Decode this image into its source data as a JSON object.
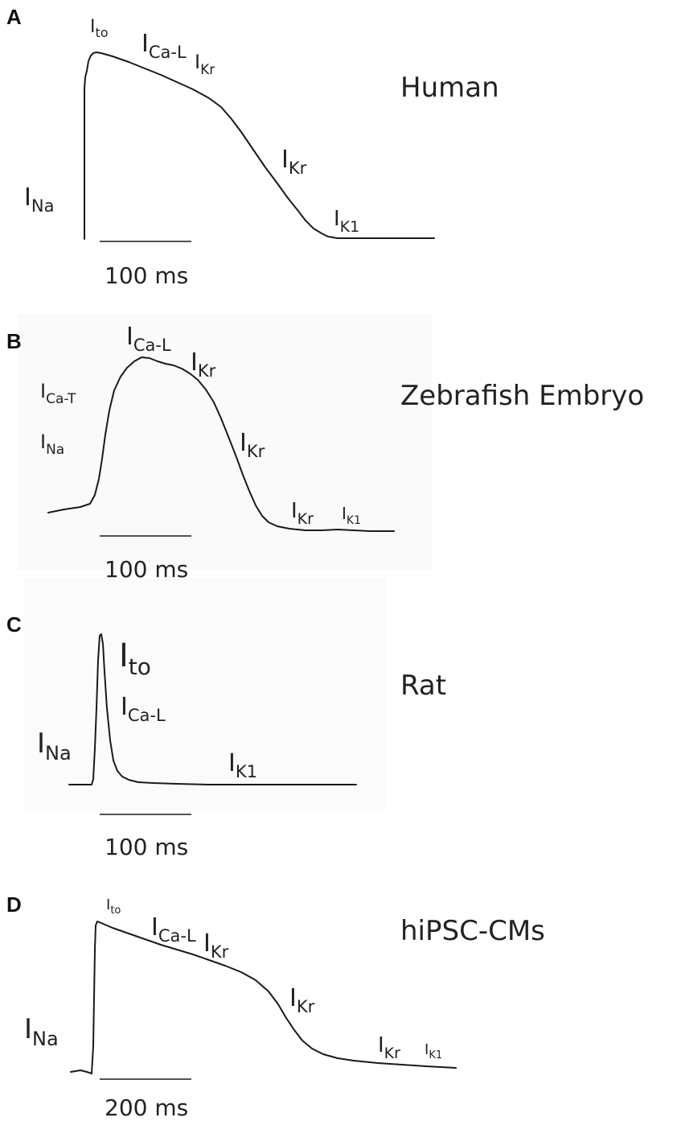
{
  "panels": [
    {
      "id": "A",
      "species": "Human",
      "scale_bar": "100 ms",
      "currents": [
        {
          "main": "I",
          "sub": "to"
        },
        {
          "main": "I",
          "sub": "Ca-L"
        },
        {
          "main": "I",
          "sub": "Kr"
        },
        {
          "main": "I",
          "sub": "Kr"
        },
        {
          "main": "I",
          "sub": "Na"
        },
        {
          "main": "I",
          "sub": "K1"
        }
      ]
    },
    {
      "id": "B",
      "species": "Zebrafish Embryo",
      "scale_bar": "100 ms",
      "currents": [
        {
          "main": "I",
          "sub": "Ca-L"
        },
        {
          "main": "I",
          "sub": "Kr"
        },
        {
          "main": "I",
          "sub": "Ca-T"
        },
        {
          "main": "I",
          "sub": "Na"
        },
        {
          "main": "I",
          "sub": "Kr"
        },
        {
          "main": "I",
          "sub": "Kr"
        },
        {
          "main": "I",
          "sub": "K1"
        }
      ]
    },
    {
      "id": "C",
      "species": "Rat",
      "scale_bar": "100 ms",
      "currents": [
        {
          "main": "I",
          "sub": "to"
        },
        {
          "main": "I",
          "sub": "Ca-L"
        },
        {
          "main": "I",
          "sub": "Na"
        },
        {
          "main": "I",
          "sub": "K1"
        }
      ]
    },
    {
      "id": "D",
      "species": "hiPSC-CMs",
      "scale_bar": "200 ms",
      "currents": [
        {
          "main": "I",
          "sub": "to"
        },
        {
          "main": "I",
          "sub": "Ca-L"
        },
        {
          "main": "I",
          "sub": "Kr"
        },
        {
          "main": "I",
          "sub": "Na"
        },
        {
          "main": "I",
          "sub": "Kr"
        },
        {
          "main": "I",
          "sub": "Kr"
        },
        {
          "main": "I",
          "sub": "K1"
        }
      ]
    }
  ]
}
